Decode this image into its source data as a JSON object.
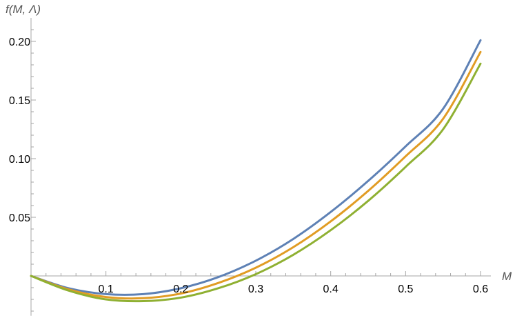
{
  "chart_data": {
    "type": "line",
    "title": "",
    "xlabel": "M",
    "ylabel": "f(M, Λ)",
    "xlim": [
      0,
      0.6
    ],
    "ylim": [
      -0.034,
      0.22
    ],
    "grid": false,
    "legend": "none",
    "x_ticks": [
      {
        "value": 0.1,
        "label": "0.1"
      },
      {
        "value": 0.2,
        "label": "0.2"
      },
      {
        "value": 0.3,
        "label": "0.3"
      },
      {
        "value": 0.4,
        "label": "0.4"
      },
      {
        "value": 0.5,
        "label": "0.5"
      },
      {
        "value": 0.6,
        "label": "0.6"
      }
    ],
    "y_ticks": [
      {
        "value": 0.05,
        "label": "0.05"
      },
      {
        "value": 0.1,
        "label": "0.10"
      },
      {
        "value": 0.15,
        "label": "0.15"
      },
      {
        "value": 0.2,
        "label": "0.20"
      }
    ],
    "x": [
      0,
      0.05,
      0.1,
      0.15,
      0.2,
      0.25,
      0.3,
      0.35,
      0.4,
      0.45,
      0.5,
      0.55,
      0.6
    ],
    "series": [
      {
        "color": "#5e81b5",
        "values": [
          0,
          -0.0105,
          -0.0155,
          -0.0155,
          -0.0105,
          -0.001,
          0.013,
          0.0315,
          0.0545,
          0.081,
          0.1105,
          0.1425,
          0.201
        ]
      },
      {
        "color": "#e19c24",
        "values": [
          0,
          -0.0115,
          -0.018,
          -0.019,
          -0.015,
          -0.006,
          0.007,
          0.0245,
          0.0465,
          0.0725,
          0.102,
          0.134,
          0.191
        ]
      },
      {
        "color": "#8fb032",
        "values": [
          0,
          -0.0125,
          -0.02,
          -0.0215,
          -0.0185,
          -0.0105,
          0.0015,
          0.018,
          0.039,
          0.064,
          0.093,
          0.125,
          0.181
        ]
      }
    ]
  }
}
